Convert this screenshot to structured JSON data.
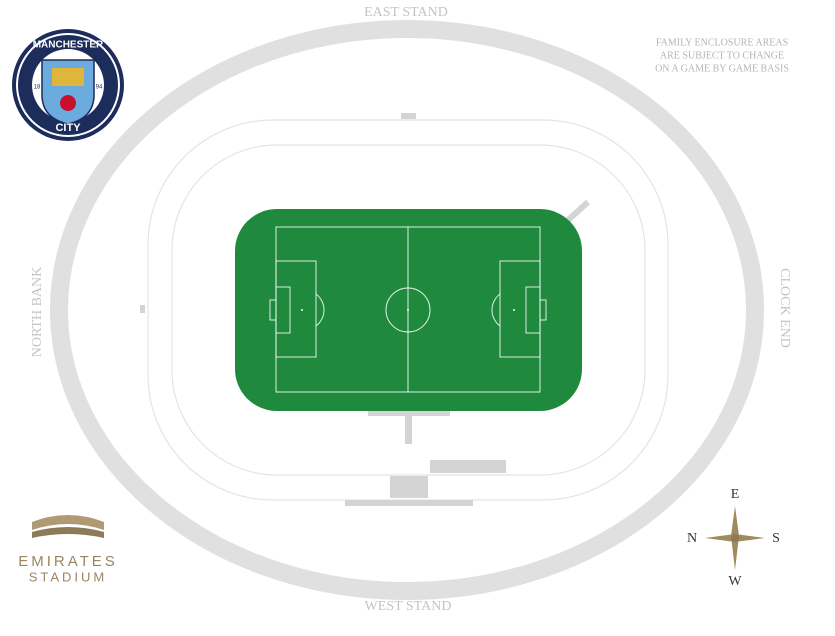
{
  "stands": {
    "east": "EAST STAND",
    "west": "WEST STAND",
    "north": "NORTH BANK",
    "south": "CLOCK END"
  },
  "notice": [
    "FAMILY ENCLOSURE AREAS",
    "ARE SUBJECT TO CHANGE",
    "ON A GAME BY GAME BASIS"
  ],
  "club_logo": {
    "top": "MANCHESTER",
    "bottom": "CITY",
    "year_left": "18",
    "year_right": "94"
  },
  "venue_logo": {
    "line1": "EMIRATES",
    "line2": "STADIUM"
  },
  "compass": {
    "east": "E",
    "west": "W",
    "north": "N",
    "south": "S"
  }
}
